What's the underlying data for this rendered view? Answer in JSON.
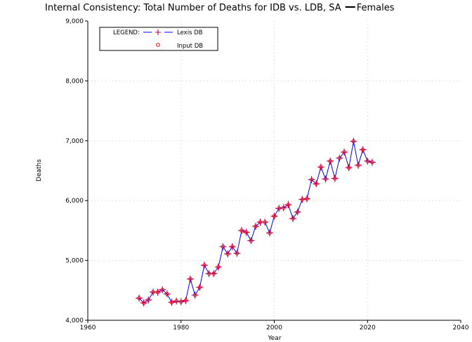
{
  "chart_data": {
    "type": "line",
    "title": "Internal Consistency: Total Number of Deaths for IDB vs. LDB, SA",
    "title_suffix": "Females",
    "xlabel": "Year",
    "ylabel": "Deaths",
    "xlim": [
      1960,
      2040
    ],
    "ylim": [
      4000,
      9000
    ],
    "x_ticks": [
      "1960",
      "1980",
      "2000",
      "2020",
      "2040"
    ],
    "y_ticks": [
      "4,000",
      "5,000",
      "6,000",
      "7,000",
      "8,000",
      "9,000"
    ],
    "grid": "dotted",
    "legend": {
      "placement": "top-left",
      "label": "LEGEND:",
      "entries": [
        "Lexis DB",
        "Input DB"
      ]
    },
    "colors": {
      "lexis": "#0000ff",
      "lexis_marker": "#aa0066",
      "input": "#ff0000"
    },
    "x": [
      1971,
      1972,
      1973,
      1974,
      1975,
      1976,
      1977,
      1978,
      1979,
      1980,
      1981,
      1982,
      1983,
      1984,
      1985,
      1986,
      1987,
      1988,
      1989,
      1990,
      1991,
      1992,
      1993,
      1994,
      1995,
      1996,
      1997,
      1998,
      1999,
      2000,
      2001,
      2002,
      2003,
      2004,
      2005,
      2006,
      2007,
      2008,
      2009,
      2010,
      2011,
      2012,
      2013,
      2014,
      2015,
      2016,
      2017,
      2018,
      2019,
      2020,
      2021
    ],
    "series": [
      {
        "name": "Lexis DB",
        "values": [
          4370,
          4290,
          4340,
          4470,
          4470,
          4510,
          4440,
          4300,
          4320,
          4310,
          4330,
          4690,
          4420,
          4550,
          4920,
          4780,
          4780,
          4890,
          5230,
          5110,
          5230,
          5120,
          5500,
          5470,
          5330,
          5570,
          5640,
          5640,
          5460,
          5740,
          5870,
          5880,
          5930,
          5700,
          5810,
          6020,
          6030,
          6350,
          6280,
          6560,
          6360,
          6660,
          6370,
          6710,
          6810,
          6550,
          6990,
          6590,
          6850,
          6660,
          6640
        ]
      },
      {
        "name": "Input DB",
        "values": [
          4370,
          4290,
          4340,
          4470,
          4470,
          4510,
          4440,
          4300,
          4320,
          4310,
          4330,
          4690,
          4420,
          4550,
          4920,
          4780,
          4780,
          4890,
          5230,
          5110,
          5230,
          5120,
          5500,
          5470,
          5330,
          5570,
          5640,
          5640,
          5460,
          5740,
          5870,
          5880,
          5930,
          5700,
          5810,
          6020,
          6030,
          6350,
          6280,
          6560,
          6360,
          6660,
          6370,
          6710,
          6810,
          6550,
          6990,
          6590,
          6850,
          6660,
          6640
        ]
      }
    ]
  }
}
